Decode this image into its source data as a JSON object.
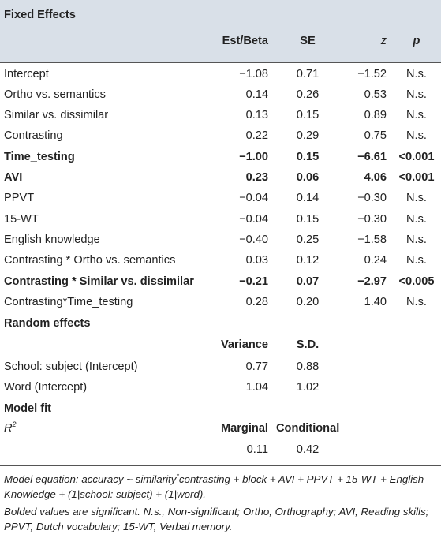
{
  "sections": {
    "fixed": "Fixed Effects",
    "random": "Random effects",
    "model_fit": "Model fit"
  },
  "headers": {
    "est": "Est/Beta",
    "se": "SE",
    "z": "z",
    "p": "p"
  },
  "fixed_rows": [
    {
      "label": "Intercept",
      "est": "−1.08",
      "se": "0.71",
      "z": "−1.52",
      "p": "N.s."
    },
    {
      "label": "Ortho vs. semantics",
      "est": "0.14",
      "se": "0.26",
      "z": "0.53",
      "p": "N.s."
    },
    {
      "label": "Similar vs. dissimilar",
      "est": "0.13",
      "se": "0.15",
      "z": "0.89",
      "p": "N.s."
    },
    {
      "label": "Contrasting",
      "est": "0.22",
      "se": "0.29",
      "z": "0.75",
      "p": "N.s."
    },
    {
      "label": "Time_testing",
      "est": "−1.00",
      "se": "0.15",
      "z": "−6.61",
      "p": "<0.001"
    },
    {
      "label": "AVI",
      "est": "0.23",
      "se": "0.06",
      "z": "4.06",
      "p": "<0.001"
    },
    {
      "label": "PPVT",
      "est": "−0.04",
      "se": "0.14",
      "z": "−0.30",
      "p": "N.s."
    },
    {
      "label": "15-WT",
      "est": "−0.04",
      "se": "0.15",
      "z": "−0.30",
      "p": "N.s."
    },
    {
      "label": "English knowledge",
      "est": "−0.40",
      "se": "0.25",
      "z": "−1.58",
      "p": "N.s."
    },
    {
      "label": "Contrasting * Ortho vs. semantics",
      "est": "0.03",
      "se": "0.12",
      "z": "0.24",
      "p": "N.s."
    },
    {
      "label": "Contrasting * Similar vs. dissimilar",
      "est": "−0.21",
      "se": "0.07",
      "z": "−2.97",
      "p": "<0.005"
    },
    {
      "label": "Contrasting*Time_testing",
      "est": "0.28",
      "se": "0.20",
      "z": "1.40",
      "p": "N.s."
    }
  ],
  "random": {
    "col1": "Variance",
    "col2": "S.D.",
    "rows": [
      {
        "label": "School: subject (Intercept)",
        "v1": "0.77",
        "v2": "0.88"
      },
      {
        "label": "Word (Intercept)",
        "v1": "1.04",
        "v2": "1.02"
      }
    ]
  },
  "model_fit": {
    "r_label": "R",
    "r_sup": "2",
    "col1": "Marginal",
    "col2": "Conditional",
    "v1": "0.11",
    "v2": "0.42"
  },
  "footnote": {
    "eq_a": "Model equation: accuracy ~ similarity",
    "eq_sup": "*",
    "eq_b": "contrasting + block + AVI + PPVT + 15-WT + English Knowledge + (1|school: subject) + (1|word).",
    "note": "Bolded values are significant. N.s., Non-significant; Ortho, Orthography; AVI, Reading skills; PPVT, Dutch vocabulary; 15-WT, Verbal memory."
  }
}
